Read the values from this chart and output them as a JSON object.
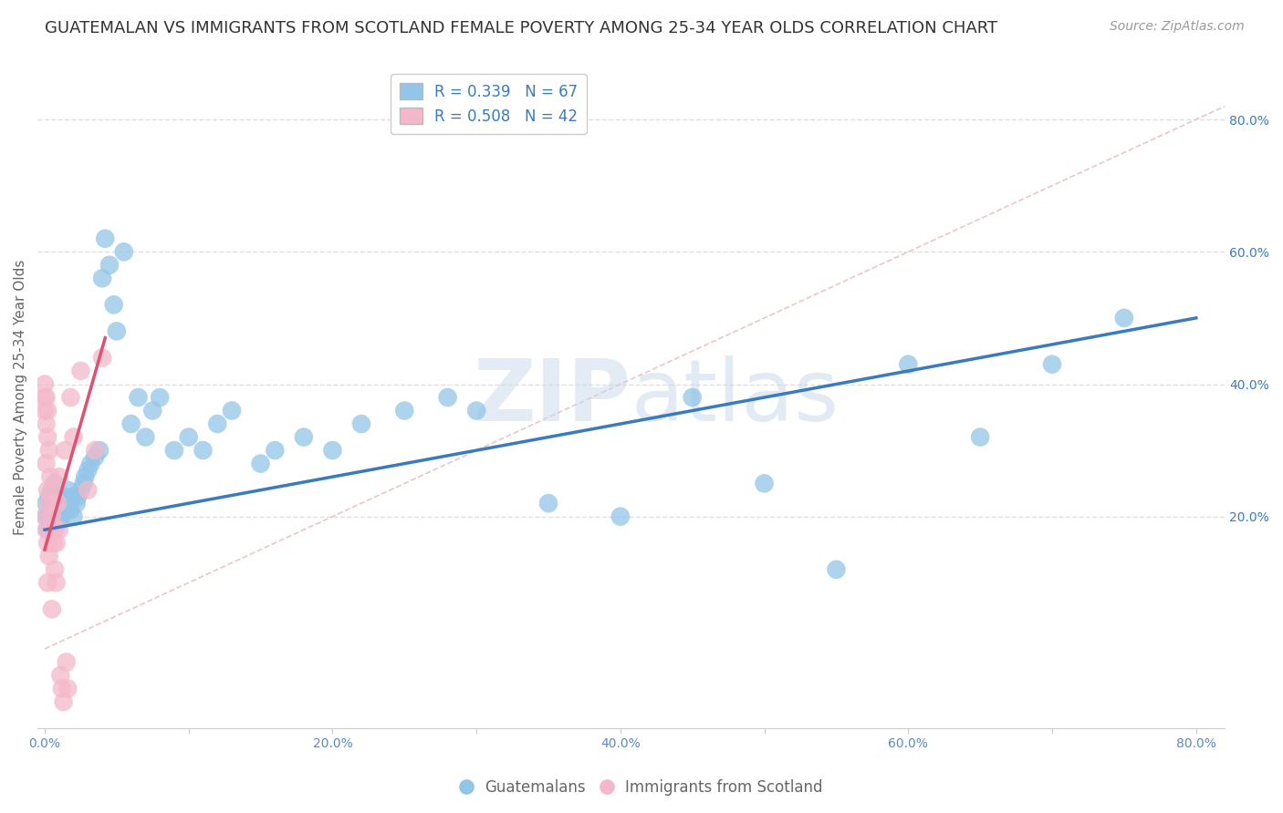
{
  "title": "GUATEMALAN VS IMMIGRANTS FROM SCOTLAND FEMALE POVERTY AMONG 25-34 YEAR OLDS CORRELATION CHART",
  "source": "Source: ZipAtlas.com",
  "ylabel": "Female Poverty Among 25-34 Year Olds",
  "xlim": [
    -0.005,
    0.82
  ],
  "ylim": [
    -0.12,
    0.88
  ],
  "background_color": "#ffffff",
  "grid_color": "#e0e0e0",
  "grid_style": "--",
  "blue_R": 0.339,
  "blue_N": 67,
  "pink_R": 0.508,
  "pink_N": 42,
  "blue_scatter_x": [
    0.001,
    0.001,
    0.002,
    0.003,
    0.003,
    0.004,
    0.005,
    0.005,
    0.006,
    0.007,
    0.008,
    0.008,
    0.009,
    0.01,
    0.01,
    0.011,
    0.012,
    0.013,
    0.014,
    0.015,
    0.016,
    0.017,
    0.018,
    0.019,
    0.02,
    0.022,
    0.023,
    0.025,
    0.027,
    0.028,
    0.03,
    0.032,
    0.035,
    0.038,
    0.04,
    0.042,
    0.045,
    0.048,
    0.05,
    0.055,
    0.06,
    0.065,
    0.07,
    0.075,
    0.08,
    0.09,
    0.1,
    0.11,
    0.12,
    0.13,
    0.15,
    0.16,
    0.18,
    0.2,
    0.22,
    0.25,
    0.28,
    0.3,
    0.35,
    0.4,
    0.45,
    0.5,
    0.55,
    0.6,
    0.65,
    0.7,
    0.75
  ],
  "blue_scatter_y": [
    0.2,
    0.22,
    0.18,
    0.2,
    0.23,
    0.19,
    0.22,
    0.24,
    0.2,
    0.25,
    0.21,
    0.23,
    0.19,
    0.2,
    0.22,
    0.21,
    0.2,
    0.23,
    0.22,
    0.21,
    0.24,
    0.22,
    0.21,
    0.23,
    0.2,
    0.22,
    0.23,
    0.24,
    0.25,
    0.26,
    0.27,
    0.28,
    0.29,
    0.3,
    0.56,
    0.62,
    0.58,
    0.52,
    0.48,
    0.6,
    0.34,
    0.38,
    0.32,
    0.36,
    0.38,
    0.3,
    0.32,
    0.3,
    0.34,
    0.36,
    0.28,
    0.3,
    0.32,
    0.3,
    0.34,
    0.36,
    0.38,
    0.36,
    0.22,
    0.2,
    0.38,
    0.25,
    0.12,
    0.43,
    0.32,
    0.43,
    0.5
  ],
  "pink_scatter_x": [
    0.0,
    0.0,
    0.0,
    0.0,
    0.001,
    0.001,
    0.001,
    0.001,
    0.002,
    0.002,
    0.002,
    0.002,
    0.002,
    0.003,
    0.003,
    0.003,
    0.004,
    0.004,
    0.005,
    0.005,
    0.005,
    0.006,
    0.006,
    0.007,
    0.007,
    0.008,
    0.008,
    0.009,
    0.01,
    0.01,
    0.011,
    0.012,
    0.013,
    0.014,
    0.015,
    0.016,
    0.018,
    0.02,
    0.025,
    0.03,
    0.035,
    0.04
  ],
  "pink_scatter_y": [
    0.36,
    0.38,
    0.4,
    0.2,
    0.38,
    0.34,
    0.28,
    0.18,
    0.36,
    0.32,
    0.24,
    0.16,
    0.1,
    0.3,
    0.22,
    0.14,
    0.26,
    0.18,
    0.24,
    0.2,
    0.06,
    0.22,
    0.16,
    0.18,
    0.12,
    0.16,
    0.1,
    0.22,
    0.26,
    0.18,
    -0.04,
    -0.06,
    -0.08,
    0.3,
    -0.02,
    -0.06,
    0.38,
    0.32,
    0.42,
    0.24,
    0.3,
    0.44
  ],
  "blue_line_x": [
    0.0,
    0.8
  ],
  "blue_line_y": [
    0.18,
    0.5
  ],
  "pink_line_x": [
    0.0,
    0.042
  ],
  "pink_line_y": [
    0.15,
    0.47
  ],
  "diag_line_x": [
    0.0,
    0.82
  ],
  "diag_line_y": [
    0.0,
    0.82
  ],
  "blue_color": "#92c5e8",
  "pink_color": "#f4b8ca",
  "blue_line_color": "#3a7bbf",
  "pink_line_color": "#e05070",
  "diag_color": "#e8c0c0",
  "xtick_labels": [
    "0.0%",
    "",
    "20.0%",
    "",
    "40.0%",
    "",
    "60.0%",
    "",
    "80.0%"
  ],
  "xtick_vals": [
    0.0,
    0.1,
    0.2,
    0.3,
    0.4,
    0.5,
    0.6,
    0.7,
    0.8
  ],
  "ytick_labels": [
    "20.0%",
    "40.0%",
    "60.0%",
    "80.0%"
  ],
  "ytick_vals": [
    0.2,
    0.4,
    0.6,
    0.8
  ],
  "legend_label1": "Guatemalans",
  "legend_label2": "Immigrants from Scotland",
  "title_fontsize": 13,
  "axis_label_fontsize": 11,
  "tick_fontsize": 10,
  "legend_fontsize": 12,
  "source_fontsize": 10
}
